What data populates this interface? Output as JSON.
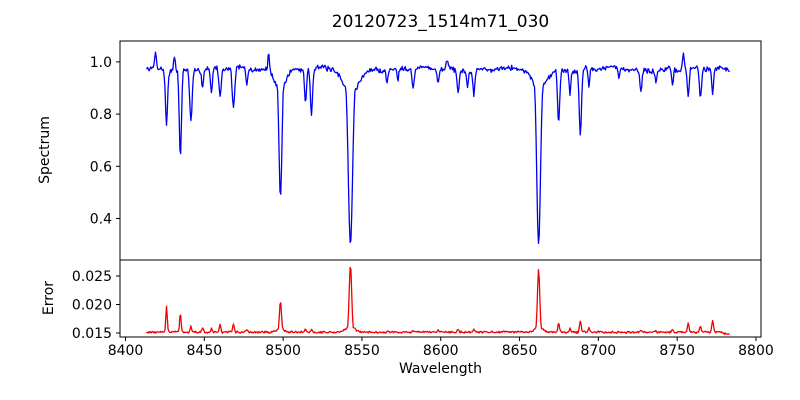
{
  "title": "20120723_1514m71_030",
  "xlabel": "Wavelength",
  "xticks": [
    {
      "value": 8400,
      "label": "8400"
    },
    {
      "value": 8450,
      "label": "8450"
    },
    {
      "value": 8500,
      "label": "8500"
    },
    {
      "value": 8550,
      "label": "8550"
    },
    {
      "value": 8600,
      "label": "8600"
    },
    {
      "value": 8650,
      "label": "8650"
    },
    {
      "value": 8700,
      "label": "8700"
    },
    {
      "value": 8750,
      "label": "8750"
    },
    {
      "value": 8800,
      "label": "8800"
    }
  ],
  "chart_data": [
    {
      "type": "line",
      "name": "spectrum",
      "ylabel": "Spectrum",
      "color": "#0000f0",
      "xlim": [
        8396.5,
        8803.2
      ],
      "ylim": [
        0.241,
        1.08
      ],
      "grid": false,
      "legend": "none",
      "yticks": [
        {
          "value": 0.4,
          "label": "0.4"
        },
        {
          "value": 0.6,
          "label": "0.6"
        },
        {
          "value": 0.8,
          "label": "0.8"
        },
        {
          "value": 1.0,
          "label": "1.0"
        }
      ],
      "x_start": 8413.5,
      "x_end": 8783.0,
      "x_step": 0.5,
      "continuum": 0.972,
      "noise_amplitude": 0.012,
      "noise_seed": 7,
      "slow_variation": [
        {
          "period": 60,
          "amp": 0.005,
          "phase": 1.0
        },
        {
          "period": 17,
          "amp": 0.004,
          "phase": 0.3
        }
      ],
      "features": [
        {
          "center": 8419.0,
          "to": 1.035,
          "fwhm": 1.2
        },
        {
          "center": 8426.0,
          "to": 0.765,
          "fwhm": 1.6
        },
        {
          "center": 8431.0,
          "to": 1.025,
          "fwhm": 1.2
        },
        {
          "center": 8434.8,
          "to": 0.635,
          "fwhm": 1.6
        },
        {
          "center": 8441.5,
          "to": 0.775,
          "fwhm": 1.8
        },
        {
          "center": 8448.9,
          "to": 0.9,
          "fwhm": 1.2
        },
        {
          "center": 8454.5,
          "to": 0.875,
          "fwhm": 1.4
        },
        {
          "center": 8460.0,
          "to": 0.862,
          "fwhm": 1.6
        },
        {
          "center": 8468.5,
          "to": 0.815,
          "fwhm": 1.8
        },
        {
          "center": 8477.0,
          "to": 0.91,
          "fwhm": 1.2
        },
        {
          "center": 8490.8,
          "to": 1.035,
          "fwhm": 1.2
        },
        {
          "center": 8498.3,
          "to": 0.49,
          "fwhm": 2.2
        },
        {
          "center": 8498.3,
          "to": 0.905,
          "fwhm": 8.0
        },
        {
          "center": 8514.2,
          "to": 0.845,
          "fwhm": 1.4
        },
        {
          "center": 8518.0,
          "to": 0.795,
          "fwhm": 1.6
        },
        {
          "center": 8542.7,
          "to": 0.3,
          "fwhm": 3.2
        },
        {
          "center": 8542.7,
          "to": 0.88,
          "fwhm": 11.0
        },
        {
          "center": 8565.9,
          "to": 0.925,
          "fwhm": 1.2
        },
        {
          "center": 8572.8,
          "to": 0.925,
          "fwhm": 1.2
        },
        {
          "center": 8582.5,
          "to": 0.9,
          "fwhm": 1.6
        },
        {
          "center": 8598.3,
          "to": 0.92,
          "fwhm": 1.3
        },
        {
          "center": 8604.0,
          "to": 1.005,
          "fwhm": 2.0
        },
        {
          "center": 8611.0,
          "to": 0.885,
          "fwhm": 1.8
        },
        {
          "center": 8617.0,
          "to": 0.905,
          "fwhm": 1.2
        },
        {
          "center": 8621.0,
          "to": 0.875,
          "fwhm": 1.4
        },
        {
          "center": 8662.1,
          "to": 0.3,
          "fwhm": 2.8
        },
        {
          "center": 8662.1,
          "to": 0.895,
          "fwhm": 10.0
        },
        {
          "center": 8674.8,
          "to": 0.765,
          "fwhm": 1.6
        },
        {
          "center": 8682.0,
          "to": 0.88,
          "fwhm": 1.2
        },
        {
          "center": 8688.6,
          "to": 0.72,
          "fwhm": 1.7
        },
        {
          "center": 8694.0,
          "to": 0.9,
          "fwhm": 1.2
        },
        {
          "center": 8713.0,
          "to": 0.93,
          "fwhm": 1.2
        },
        {
          "center": 8727.0,
          "to": 0.885,
          "fwhm": 1.6
        },
        {
          "center": 8736.5,
          "to": 0.93,
          "fwhm": 1.2
        },
        {
          "center": 8747.0,
          "to": 0.91,
          "fwhm": 1.3
        },
        {
          "center": 8754.0,
          "to": 1.035,
          "fwhm": 1.2
        },
        {
          "center": 8757.0,
          "to": 0.865,
          "fwhm": 1.5
        },
        {
          "center": 8764.8,
          "to": 0.855,
          "fwhm": 1.6
        },
        {
          "center": 8772.5,
          "to": 0.875,
          "fwhm": 1.3
        }
      ]
    },
    {
      "type": "line",
      "name": "error",
      "ylabel": "Error",
      "color": "#f00000",
      "xlim": [
        8396.5,
        8803.2
      ],
      "ylim": [
        0.0143,
        0.0278
      ],
      "grid": false,
      "legend": "none",
      "yticks": [
        {
          "value": 0.015,
          "label": "0.015"
        },
        {
          "value": 0.02,
          "label": "0.020"
        },
        {
          "value": 0.025,
          "label": "0.025"
        }
      ],
      "x_start": 8413.5,
      "x_end": 8783.0,
      "x_step": 0.5,
      "baseline": 0.01515,
      "noise_amplitude": 0.00022,
      "noise_seed": 13,
      "end_taper": {
        "start_x": 8776,
        "slope_per_x": 6e-05
      },
      "features": [
        {
          "center": 8426.0,
          "to": 0.0197,
          "fwhm": 1.1
        },
        {
          "center": 8434.8,
          "to": 0.0186,
          "fwhm": 1.1
        },
        {
          "center": 8441.5,
          "to": 0.0162,
          "fwhm": 1.0
        },
        {
          "center": 8448.9,
          "to": 0.016,
          "fwhm": 1.0
        },
        {
          "center": 8454.5,
          "to": 0.0157,
          "fwhm": 1.0
        },
        {
          "center": 8460.0,
          "to": 0.0164,
          "fwhm": 1.2
        },
        {
          "center": 8468.5,
          "to": 0.0166,
          "fwhm": 1.2
        },
        {
          "center": 8477.0,
          "to": 0.0157,
          "fwhm": 1.0
        },
        {
          "center": 8498.3,
          "to": 0.0206,
          "fwhm": 1.5
        },
        {
          "center": 8498.3,
          "to": 0.0158,
          "fwhm": 5.0
        },
        {
          "center": 8514.2,
          "to": 0.0157,
          "fwhm": 1.0
        },
        {
          "center": 8518.0,
          "to": 0.0157,
          "fwhm": 1.0
        },
        {
          "center": 8542.7,
          "to": 0.027,
          "fwhm": 1.8
        },
        {
          "center": 8542.7,
          "to": 0.0163,
          "fwhm": 6.0
        },
        {
          "center": 8565.9,
          "to": 0.0153,
          "fwhm": 1.0
        },
        {
          "center": 8582.5,
          "to": 0.0154,
          "fwhm": 1.0
        },
        {
          "center": 8598.3,
          "to": 0.0155,
          "fwhm": 1.0
        },
        {
          "center": 8611.0,
          "to": 0.0156,
          "fwhm": 1.2
        },
        {
          "center": 8621.0,
          "to": 0.0157,
          "fwhm": 1.2
        },
        {
          "center": 8640.0,
          "to": 0.0153,
          "fwhm": 1.0
        },
        {
          "center": 8662.1,
          "to": 0.0262,
          "fwhm": 1.7
        },
        {
          "center": 8662.1,
          "to": 0.0162,
          "fwhm": 5.5
        },
        {
          "center": 8674.8,
          "to": 0.0168,
          "fwhm": 1.2
        },
        {
          "center": 8682.0,
          "to": 0.0158,
          "fwhm": 1.0
        },
        {
          "center": 8688.6,
          "to": 0.0172,
          "fwhm": 1.2
        },
        {
          "center": 8694.0,
          "to": 0.016,
          "fwhm": 1.0
        },
        {
          "center": 8713.0,
          "to": 0.0153,
          "fwhm": 1.0
        },
        {
          "center": 8727.0,
          "to": 0.0156,
          "fwhm": 1.2
        },
        {
          "center": 8736.5,
          "to": 0.0154,
          "fwhm": 1.0
        },
        {
          "center": 8747.0,
          "to": 0.0155,
          "fwhm": 1.0
        },
        {
          "center": 8757.0,
          "to": 0.0168,
          "fwhm": 1.2
        },
        {
          "center": 8764.8,
          "to": 0.0162,
          "fwhm": 1.2
        },
        {
          "center": 8772.5,
          "to": 0.0172,
          "fwhm": 1.2
        }
      ]
    }
  ]
}
